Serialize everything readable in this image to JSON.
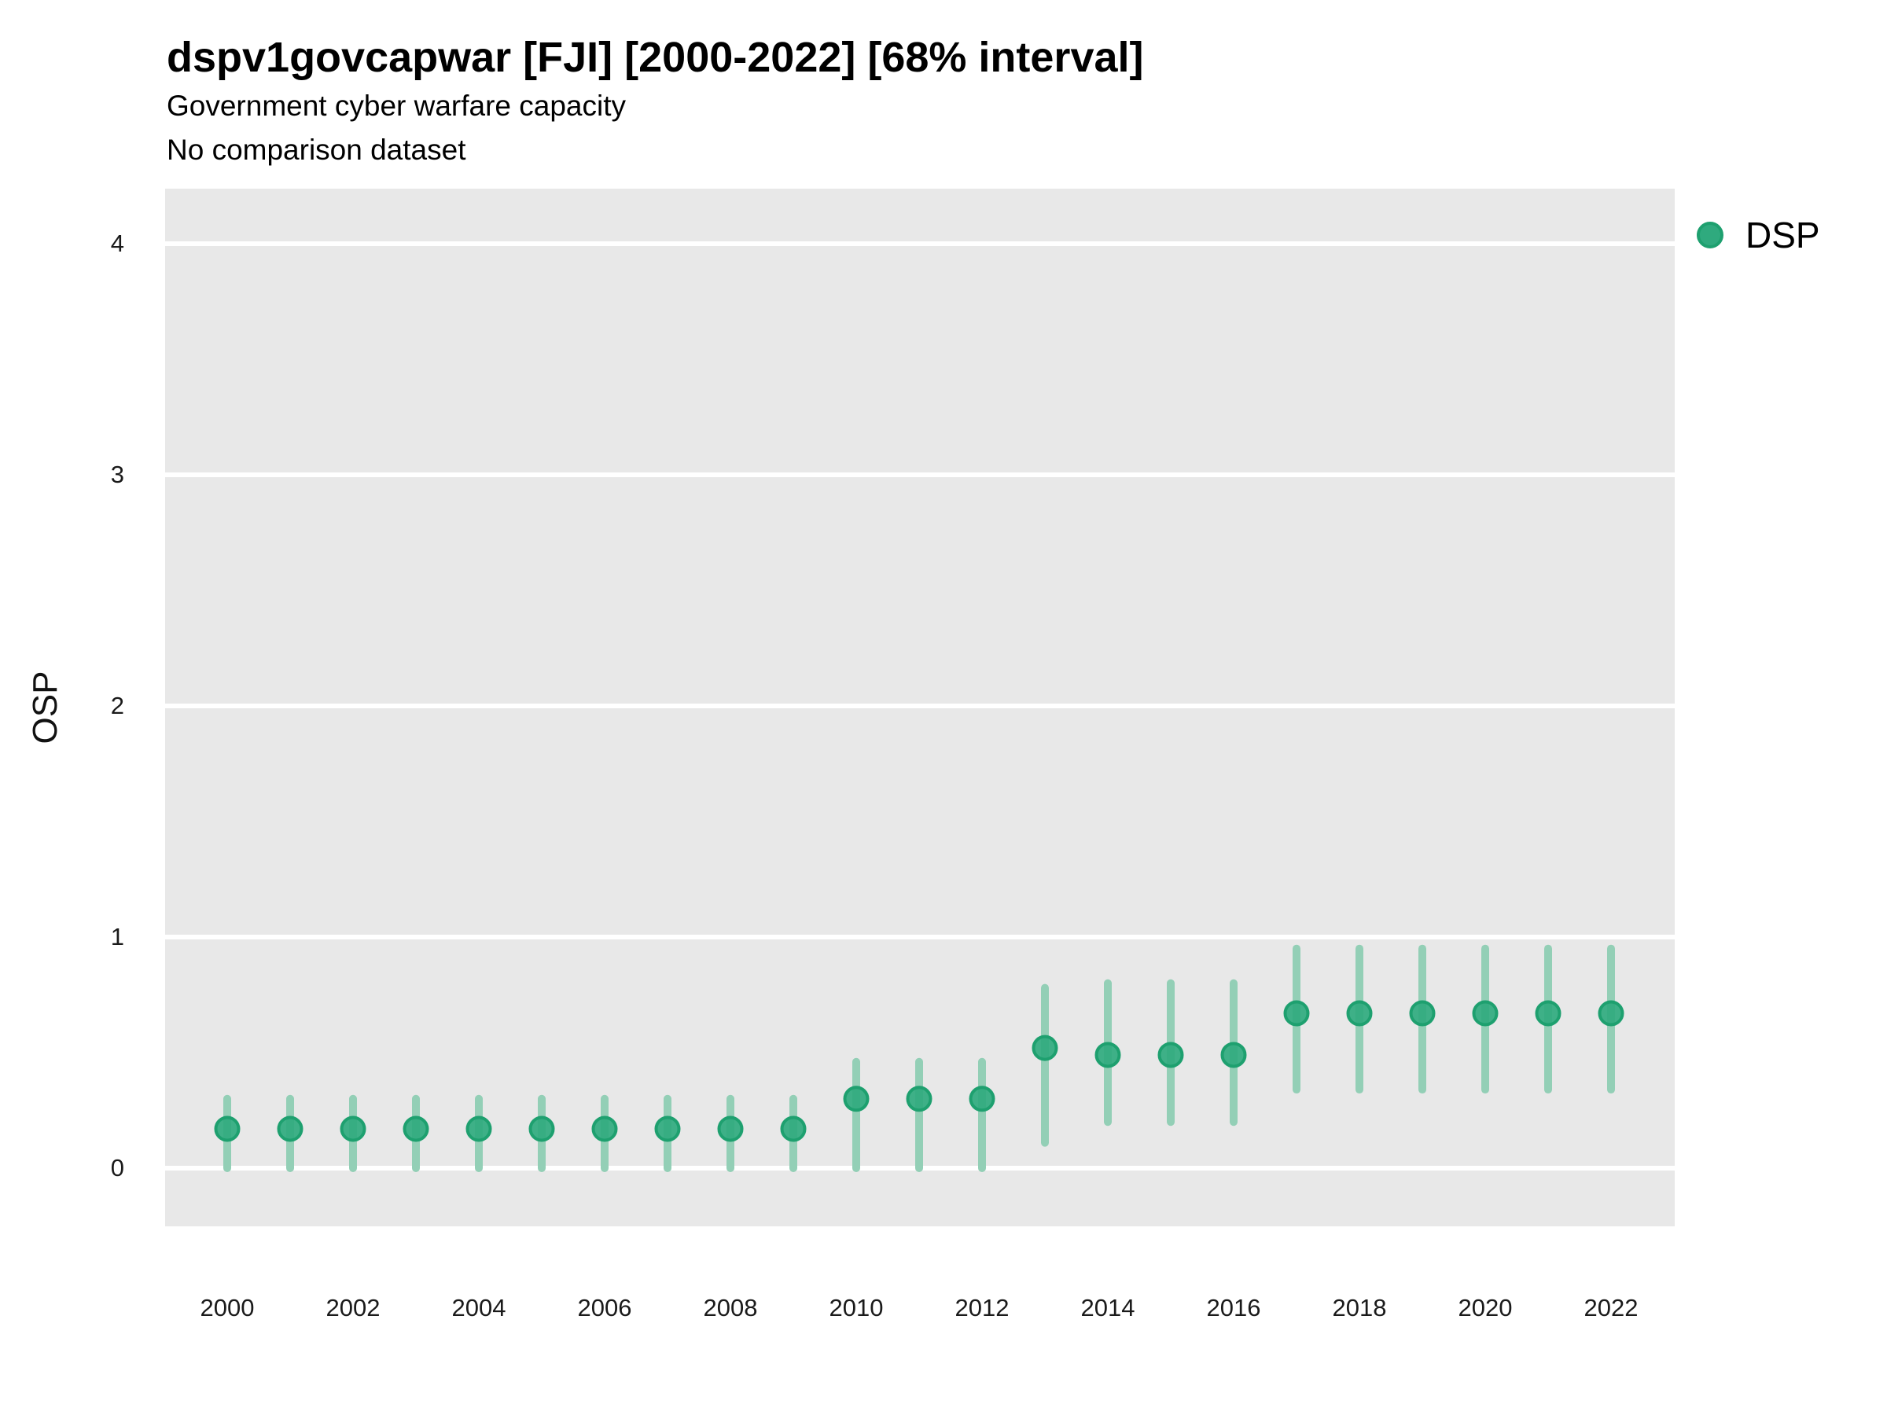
{
  "title": "dspv1govcapwar [FJI] [2000-2022] [68% interval]",
  "subtitle": "Government cyber warfare capacity",
  "subtitle2": "No comparison dataset",
  "y_axis_label": "OSP",
  "legend": {
    "items": [
      {
        "label": "DSP",
        "marker": "circle-icon",
        "color": "#2faa7e"
      }
    ]
  },
  "colors": {
    "point_fill": "#2faa7e",
    "point_ring": "#1ea06f",
    "interval_line": "#93cfb6",
    "panel_background": "#e8e8e8",
    "gridline": "#ffffff",
    "text": "#000000"
  },
  "chart_data": {
    "type": "scatter",
    "subtype": "pointrange",
    "title": "dspv1govcapwar [FJI] [2000-2022] [68% interval]",
    "xlabel": "",
    "ylabel": "OSP",
    "interval": "68%",
    "grid": "horizontal-major-only",
    "legend_position": "right",
    "ylim": [
      -0.25,
      4.25
    ],
    "y_ticks": [
      0,
      1,
      2,
      3,
      4
    ],
    "x_tick_labels": [
      "2000",
      "2002",
      "2004",
      "2006",
      "2008",
      "2010",
      "2012",
      "2014",
      "2016",
      "2018",
      "2020",
      "2022"
    ],
    "x": [
      2000,
      2001,
      2002,
      2003,
      2004,
      2005,
      2006,
      2007,
      2008,
      2009,
      2010,
      2011,
      2012,
      2013,
      2014,
      2015,
      2016,
      2017,
      2018,
      2019,
      2020,
      2021,
      2022
    ],
    "series": [
      {
        "name": "DSP",
        "values": [
          0.17,
          0.17,
          0.17,
          0.17,
          0.17,
          0.17,
          0.17,
          0.17,
          0.17,
          0.17,
          0.3,
          0.3,
          0.3,
          0.52,
          0.49,
          0.49,
          0.49,
          0.67,
          0.67,
          0.67,
          0.67,
          0.67,
          0.67
        ],
        "lower": [
          0.0,
          0.0,
          0.0,
          0.0,
          0.0,
          0.0,
          0.0,
          0.0,
          0.0,
          0.0,
          0.0,
          0.0,
          0.0,
          0.11,
          0.2,
          0.2,
          0.2,
          0.34,
          0.34,
          0.34,
          0.34,
          0.34,
          0.34
        ],
        "upper": [
          0.3,
          0.3,
          0.3,
          0.3,
          0.3,
          0.3,
          0.3,
          0.3,
          0.3,
          0.3,
          0.46,
          0.46,
          0.46,
          0.78,
          0.8,
          0.8,
          0.8,
          0.95,
          0.95,
          0.95,
          0.95,
          0.95,
          0.95
        ]
      }
    ]
  }
}
